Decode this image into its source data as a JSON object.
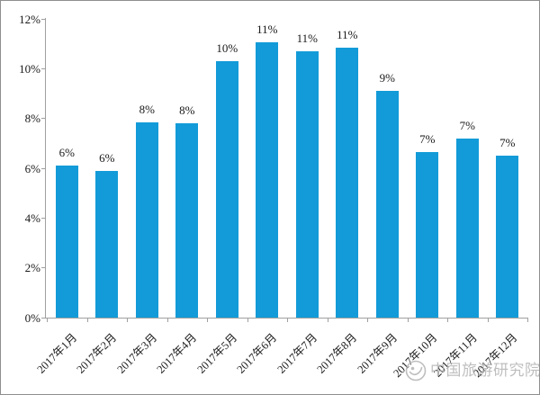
{
  "chart_data": {
    "type": "bar",
    "title": "",
    "categories": [
      "2017年1月",
      "2017年2月",
      "2017年3月",
      "2017年4月",
      "2017年5月",
      "2017年6月",
      "2017年7月",
      "2017年8月",
      "2017年9月",
      "2017年10月",
      "2017年11月",
      "2017年12月"
    ],
    "values": [
      6.1,
      5.9,
      7.85,
      7.8,
      10.3,
      11.05,
      10.7,
      10.85,
      9.1,
      6.65,
      7.2,
      6.5
    ],
    "bar_labels": [
      "6%",
      "6%",
      "8%",
      "8%",
      "10%",
      "11%",
      "11%",
      "11%",
      "9%",
      "7%",
      "7%",
      "7%"
    ],
    "y_ticks": [
      "0%",
      "2%",
      "4%",
      "6%",
      "8%",
      "10%",
      "12%"
    ],
    "xlabel": "",
    "ylabel": "",
    "ylim": [
      0,
      12
    ],
    "grid": false,
    "legend": false
  },
  "watermark": {
    "logo_icon": "cnta-logo-icon",
    "text": "中国旅游研究院"
  },
  "colors": {
    "bar": "#129bd8",
    "axis": "#a0a0a0",
    "text": "#1a1a1a",
    "watermark": "#b6b6b6",
    "border": "#8f8f8f"
  }
}
